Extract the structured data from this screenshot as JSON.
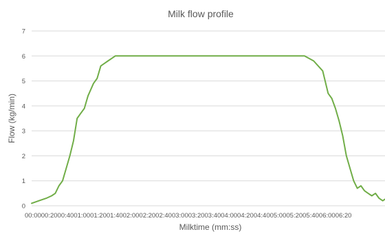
{
  "chart_data": {
    "type": "line",
    "title": "Milk flow profile",
    "xlabel": "Milktime (mm:ss)",
    "ylabel": "Flow (kg/min)",
    "ylim": [
      0,
      7
    ],
    "yticks": [
      "0",
      "1",
      "2",
      "3",
      "4",
      "5",
      "6",
      "7"
    ],
    "grid": true,
    "x_tick_text": "00:0000:2000:4001:0001:2001:4002:0002:2002:4003:0003:2003:4004:0004:2004:4005:0005:2005:4006:0006:20",
    "x_categories": [
      "00:00",
      "00:20",
      "00:40",
      "01:00",
      "01:20",
      "01:40",
      "02:00",
      "02:20",
      "02:40",
      "03:00",
      "03:20",
      "03:40",
      "04:00",
      "04:20",
      "04:40",
      "05:00",
      "05:20",
      "05:40",
      "06:00",
      "06:20"
    ],
    "x_range_seconds": [
      0,
      390
    ],
    "series": [
      {
        "color": "#70ad47",
        "x_seconds": [
          0,
          8,
          16,
          22,
          26,
          30,
          34,
          38,
          42,
          46,
          50,
          54,
          58,
          62,
          68,
          72,
          76,
          80,
          84,
          88,
          92,
          96,
          100,
          104,
          108,
          112,
          116,
          120,
          140,
          160,
          180,
          200,
          220,
          240,
          260,
          280,
          300,
          310,
          320,
          326,
          330,
          334,
          338,
          342,
          346,
          350,
          354,
          358,
          362,
          366,
          370,
          374,
          378,
          382,
          386,
          390
        ],
        "y": [
          0.1,
          0.2,
          0.3,
          0.4,
          0.5,
          0.8,
          1.0,
          1.5,
          2.0,
          2.6,
          3.5,
          3.7,
          3.9,
          4.4,
          4.9,
          5.1,
          5.6,
          5.7,
          5.8,
          5.9,
          6.0,
          6.0,
          6.0,
          6.0,
          6.0,
          6.0,
          6.0,
          6.0,
          6.0,
          6.0,
          6.0,
          6.0,
          6.0,
          6.0,
          6.0,
          6.0,
          6.0,
          5.8,
          5.4,
          4.5,
          4.3,
          3.9,
          3.4,
          2.8,
          2.0,
          1.5,
          1.0,
          0.7,
          0.8,
          0.6,
          0.5,
          0.4,
          0.5,
          0.3,
          0.2,
          0.3
        ]
      }
    ]
  }
}
